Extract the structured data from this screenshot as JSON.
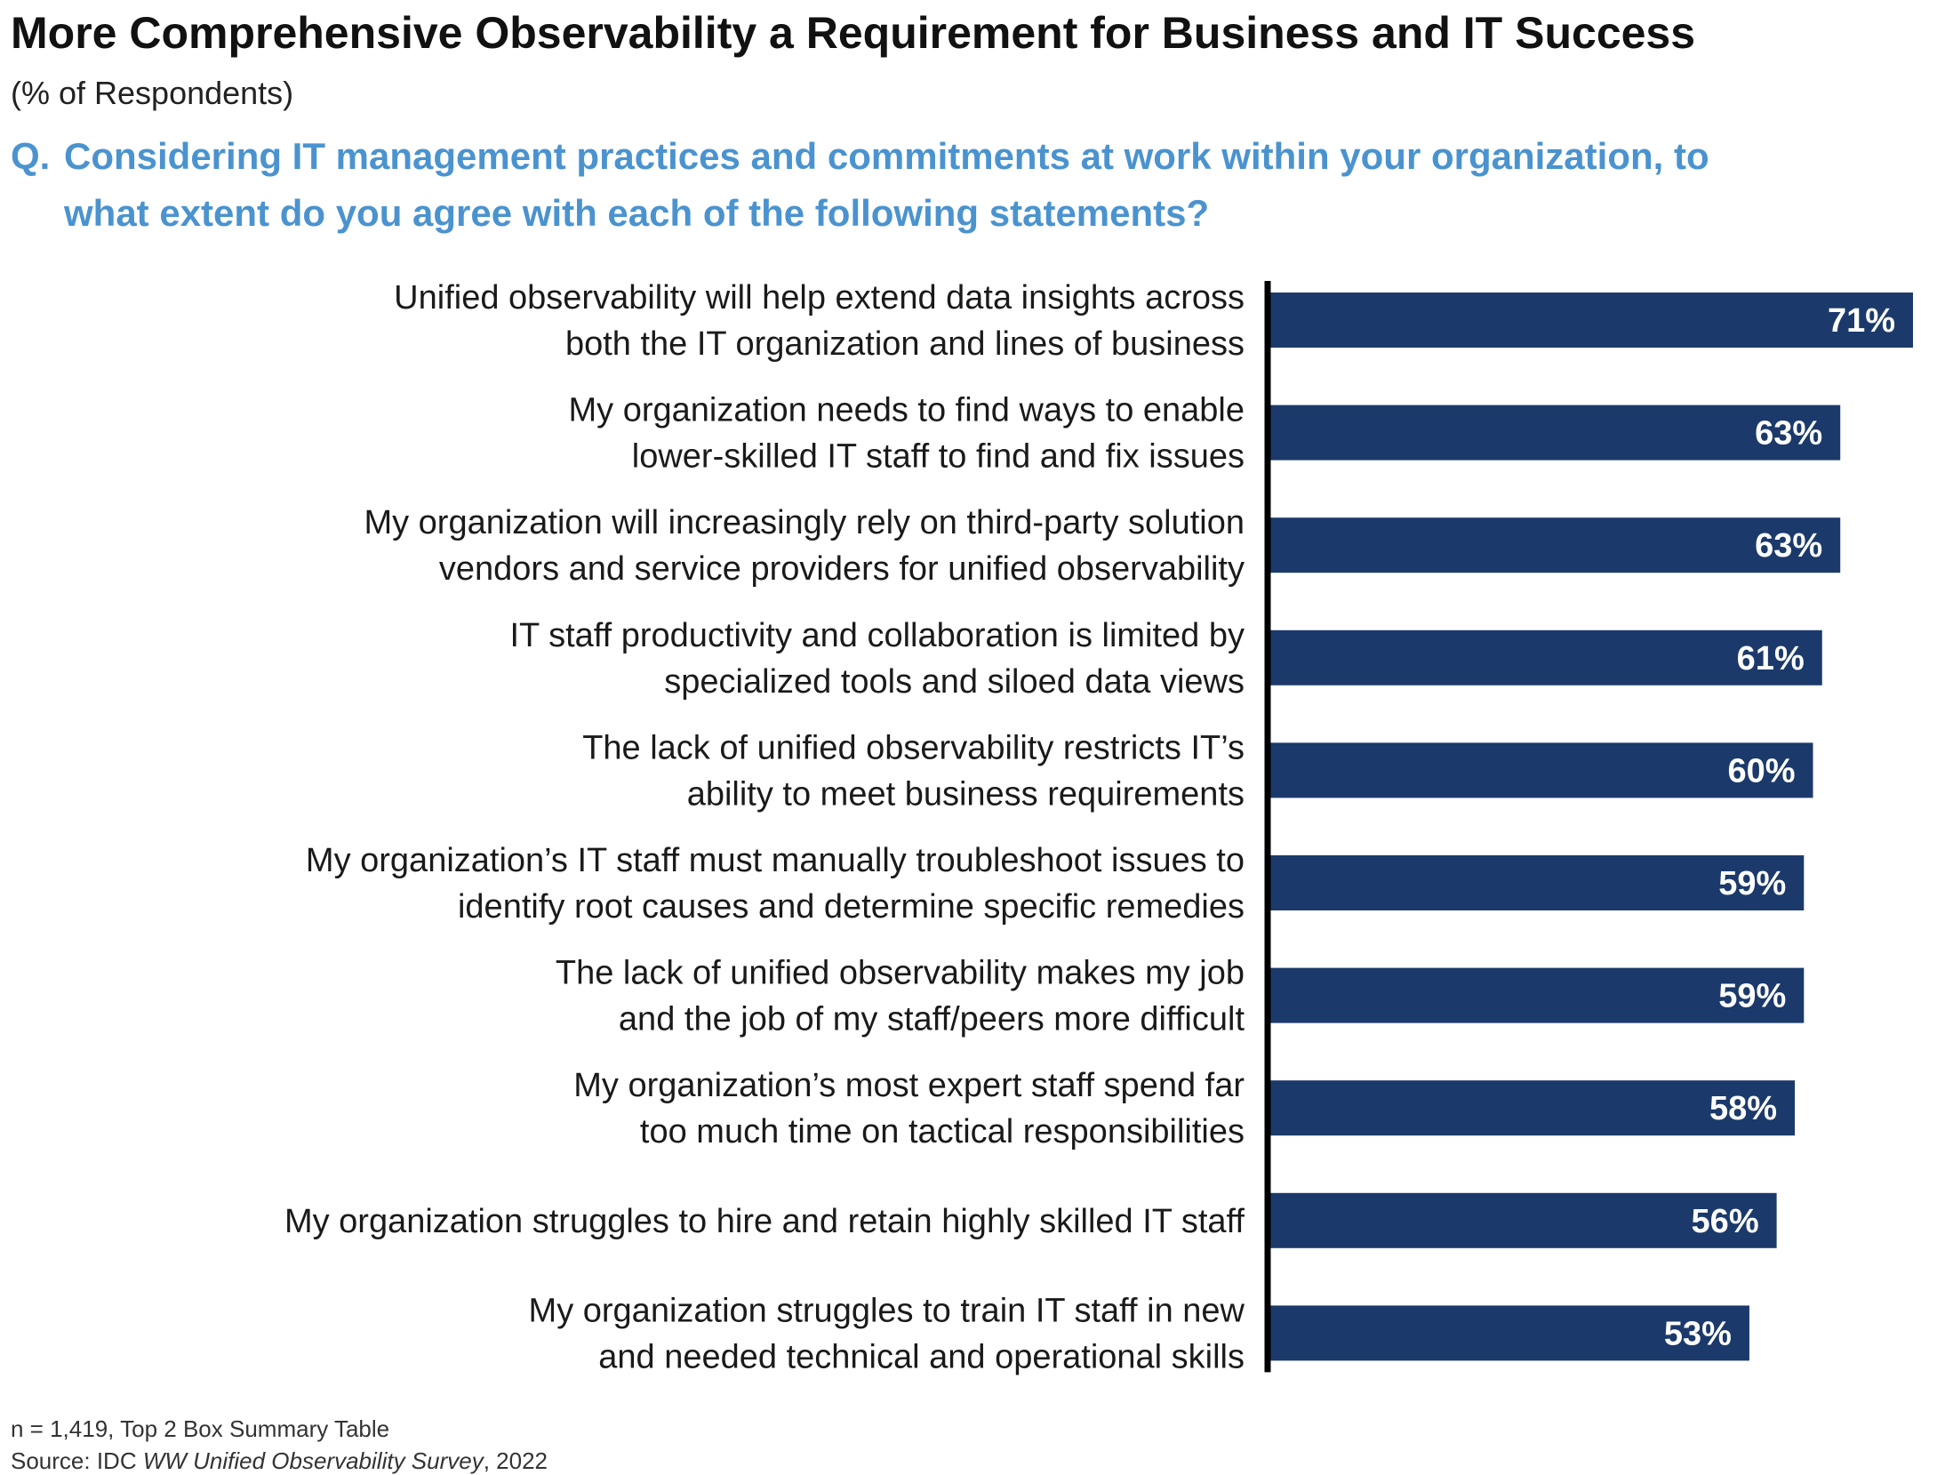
{
  "title": "More Comprehensive Observability a Requirement for Business and IT Success",
  "subtitle": "(% of Respondents)",
  "question": {
    "prefix": "Q.",
    "text": "Considering IT management practices and commitments at work within your organization, to what extent do you agree with each of the following statements?"
  },
  "chart_data": {
    "type": "bar",
    "orientation": "horizontal",
    "categories": [
      [
        "Unified observability will help extend data insights across",
        "both the IT organization and lines of business"
      ],
      [
        "My organization needs to find ways to enable",
        "lower-skilled IT staff to find and fix issues"
      ],
      [
        "My organization will increasingly rely on third-party solution",
        "vendors and service providers for unified observability"
      ],
      [
        "IT staff productivity and collaboration is limited by",
        "specialized tools and siloed data views"
      ],
      [
        "The lack of unified observability restricts IT’s",
        "ability to meet business requirements"
      ],
      [
        "My organization’s IT staff must manually troubleshoot issues to",
        "identify root causes and determine specific remedies"
      ],
      [
        "The lack of unified observability makes my job",
        "and the job of my staff/peers more difficult"
      ],
      [
        "My organization’s most expert staff spend far",
        "too much time on tactical responsibilities"
      ],
      [
        "My organization struggles to hire and retain highly skilled IT staff"
      ],
      [
        "My organization struggles to train IT staff in new",
        "and needed technical and operational skills"
      ]
    ],
    "values": [
      71,
      63,
      63,
      61,
      60,
      59,
      59,
      58,
      56,
      53
    ],
    "value_suffix": "%",
    "xlim": [
      0,
      71
    ],
    "bar_color": "#1b3a6b",
    "label_color": "#ffffff"
  },
  "footnotes": {
    "n": "n = 1,419, Top 2 Box Summary Table",
    "source_prefix": "Source: IDC ",
    "source_title": "WW Unified Observability Survey",
    "source_suffix": ", 2022"
  }
}
